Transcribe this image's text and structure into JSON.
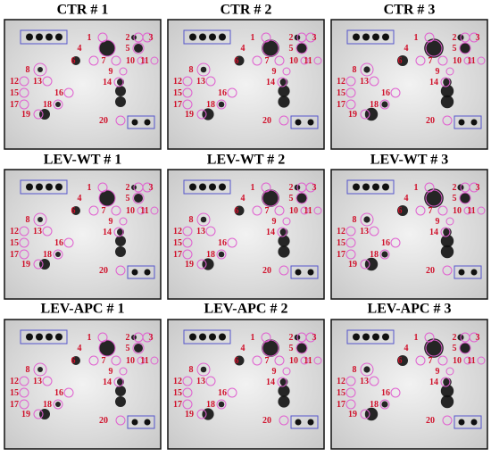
{
  "panels": [
    {
      "title": "CTR # 1",
      "labels": [
        "1",
        "2",
        "3",
        "4",
        "5",
        "6",
        "7",
        "8",
        "9",
        "10",
        "11",
        "12",
        "13",
        "14",
        "15",
        "16",
        "17",
        "18",
        "19",
        "20"
      ]
    },
    {
      "title": "CTR # 2",
      "labels": [
        "1",
        "2",
        "3",
        "4",
        "5",
        "6",
        "7",
        "8",
        "9",
        "10",
        "11",
        "12",
        "13",
        "14",
        "15",
        "16",
        "17",
        "18",
        "19",
        "20"
      ]
    },
    {
      "title": "CTR # 3",
      "labels": [
        "1",
        "2",
        "3",
        "4",
        "5",
        "6",
        "7",
        "8",
        "9",
        "10",
        "11",
        "12",
        "13",
        "14",
        "15",
        "16",
        "17",
        "18",
        "19",
        "20"
      ]
    },
    {
      "title": "LEV-WT # 1",
      "labels": [
        "1",
        "2",
        "3",
        "4",
        "5",
        "6",
        "7",
        "8",
        "9",
        "10",
        "11",
        "12",
        "13",
        "14",
        "15",
        "16",
        "17",
        "18",
        "19",
        "20"
      ]
    },
    {
      "title": "LEV-WT # 2",
      "labels": [
        "1",
        "2",
        "3",
        "4",
        "5",
        "6",
        "7",
        "8",
        "9",
        "10",
        "11",
        "12",
        "13",
        "14",
        "15",
        "16",
        "17",
        "18",
        "19",
        "20"
      ]
    },
    {
      "title": "LEV-WT # 3",
      "labels": [
        "1",
        "2",
        "3",
        "4",
        "5",
        "6",
        "7",
        "8",
        "9",
        "10",
        "11",
        "12",
        "13",
        "14",
        "15",
        "16",
        "17",
        "18",
        "19",
        "20"
      ]
    },
    {
      "title": "LEV-APC # 1",
      "labels": [
        "1",
        "2",
        "3",
        "4",
        "5",
        "6",
        "7",
        "8",
        "9",
        "10",
        "11",
        "12",
        "13",
        "14",
        "15",
        "16",
        "17",
        "18",
        "19",
        "20"
      ]
    },
    {
      "title": "LEV-APC # 2",
      "labels": [
        "1",
        "2",
        "3",
        "4",
        "5",
        "6",
        "7",
        "8",
        "9",
        "10",
        "11",
        "12",
        "13",
        "14",
        "15",
        "16",
        "17",
        "18",
        "19",
        "20"
      ]
    },
    {
      "title": "LEV-APC # 3",
      "labels": [
        "1",
        "2",
        "3",
        "4",
        "5",
        "6",
        "7",
        "8",
        "9",
        "10",
        "11",
        "12",
        "13",
        "14",
        "15",
        "16",
        "17",
        "18",
        "19",
        "20"
      ]
    }
  ]
}
